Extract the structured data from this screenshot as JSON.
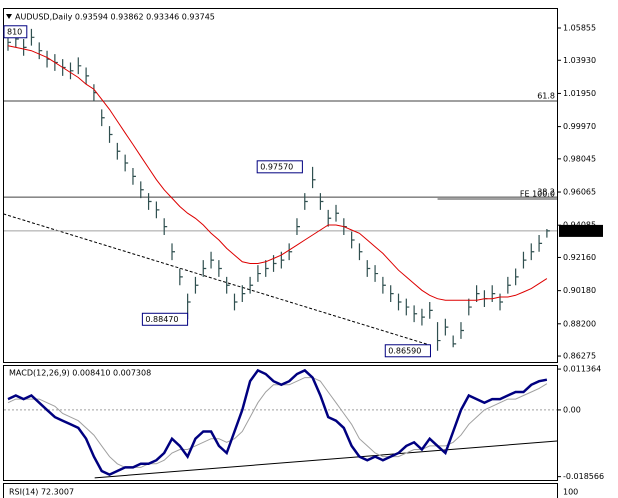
{
  "chart_data": [
    {
      "type": "ohlc",
      "title": "AUDUSD,Daily  0.93594 0.93862 0.93346 0.93745",
      "color": "#2f4f4f",
      "high": [
        1.055,
        1.057,
        1.052,
        1.058,
        1.05,
        1.045,
        1.043,
        1.04,
        1.038,
        1.041,
        1.035,
        1.025,
        1.01,
        1.0,
        0.99,
        0.983,
        0.975,
        0.967,
        0.96,
        0.955,
        0.945,
        0.93,
        0.915,
        0.9,
        0.91,
        0.92,
        0.925,
        0.92,
        0.91,
        0.9,
        0.905,
        0.91,
        0.917,
        0.92,
        0.923,
        0.925,
        0.93,
        0.945,
        0.96,
        0.9757,
        0.96,
        0.95,
        0.953,
        0.945,
        0.937,
        0.93,
        0.92,
        0.917,
        0.91,
        0.905,
        0.9,
        0.897,
        0.893,
        0.891,
        0.895,
        0.883,
        0.885,
        0.875,
        0.883,
        0.897,
        0.905,
        0.902,
        0.905,
        0.9,
        0.91,
        0.915,
        0.925,
        0.93,
        0.935,
        0.93862
      ],
      "low": [
        1.045,
        1.047,
        1.042,
        1.048,
        1.04,
        1.035,
        1.033,
        1.03,
        1.028,
        1.031,
        1.025,
        1.015,
        1.0,
        0.99,
        0.98,
        0.973,
        0.965,
        0.957,
        0.95,
        0.945,
        0.935,
        0.92,
        0.905,
        0.8847,
        0.9,
        0.91,
        0.915,
        0.91,
        0.9,
        0.89,
        0.895,
        0.9,
        0.907,
        0.91,
        0.913,
        0.915,
        0.92,
        0.935,
        0.95,
        0.963,
        0.95,
        0.94,
        0.943,
        0.935,
        0.927,
        0.92,
        0.91,
        0.907,
        0.9,
        0.895,
        0.89,
        0.887,
        0.883,
        0.881,
        0.885,
        0.8659,
        0.875,
        0.868,
        0.873,
        0.887,
        0.895,
        0.892,
        0.895,
        0.89,
        0.9,
        0.905,
        0.915,
        0.92,
        0.925,
        0.93346
      ],
      "close": [
        1.05,
        1.052,
        1.047,
        1.053,
        1.045,
        1.04,
        1.038,
        1.035,
        1.033,
        1.036,
        1.03,
        1.02,
        1.005,
        0.995,
        0.985,
        0.978,
        0.97,
        0.962,
        0.955,
        0.95,
        0.94,
        0.925,
        0.91,
        0.895,
        0.905,
        0.915,
        0.92,
        0.915,
        0.905,
        0.895,
        0.9,
        0.905,
        0.912,
        0.915,
        0.918,
        0.92,
        0.925,
        0.94,
        0.955,
        0.968,
        0.955,
        0.945,
        0.948,
        0.94,
        0.932,
        0.925,
        0.915,
        0.912,
        0.905,
        0.9,
        0.895,
        0.892,
        0.888,
        0.886,
        0.89,
        0.872,
        0.88,
        0.87,
        0.878,
        0.892,
        0.9,
        0.897,
        0.9,
        0.895,
        0.905,
        0.91,
        0.92,
        0.925,
        0.93,
        0.93745
      ],
      "series": [
        {
          "color": "#dd0000",
          "values": [
            1.048,
            1.047,
            1.046,
            1.045,
            1.043,
            1.041,
            1.038,
            1.035,
            1.032,
            1.029,
            1.025,
            1.022,
            1.016,
            1.01,
            1.003,
            0.996,
            0.989,
            0.982,
            0.975,
            0.968,
            0.962,
            0.957,
            0.952,
            0.948,
            0.945,
            0.941,
            0.936,
            0.932,
            0.927,
            0.923,
            0.919,
            0.918,
            0.918,
            0.919,
            0.921,
            0.923,
            0.926,
            0.929,
            0.932,
            0.935,
            0.938,
            0.941,
            0.941,
            0.94,
            0.938,
            0.936,
            0.932,
            0.928,
            0.924,
            0.919,
            0.914,
            0.91,
            0.906,
            0.902,
            0.899,
            0.897,
            0.896,
            0.896,
            0.896,
            0.896,
            0.896,
            0.897,
            0.897,
            0.898,
            0.898,
            0.899,
            0.901,
            0.903,
            0.906,
            0.909
          ]
        }
      ],
      "ylim": [
        0.8592,
        1.0693
      ],
      "yticks": [
        {
          "value": 1.05855,
          "label": "1.05855"
        },
        {
          "value": 1.0393,
          "label": "1.03930"
        },
        {
          "value": 1.0195,
          "label": "1.01950"
        },
        {
          "value": 0.9997,
          "label": "0.99970"
        },
        {
          "value": 0.98045,
          "label": "0.98045"
        },
        {
          "value": 0.96065,
          "label": "0.96065"
        },
        {
          "value": 0.94085,
          "label": "0.94085"
        },
        {
          "value": 0.9216,
          "label": "0.92160"
        },
        {
          "value": 0.9018,
          "label": "0.90180"
        },
        {
          "value": 0.882,
          "label": "0.88200"
        },
        {
          "value": 0.86275,
          "label": "0.86275"
        }
      ],
      "hlines": [
        {
          "value": 1.015,
          "label": "61.8",
          "from": -1
        },
        {
          "value": 0.9576,
          "label": "38.2",
          "from": -1
        },
        {
          "value": 0.9565,
          "label": "FE 100.0",
          "from": 55
        }
      ],
      "current_price": {
        "value": 0.93745,
        "label": "0.93745"
      },
      "trendline": {
        "x": [
          -0.6,
          54
        ],
        "y": [
          0.9476,
          0.8693
        ]
      },
      "annotations": [
        {
          "x": 34.8,
          "value": 0.9757,
          "label": "0.97570"
        },
        {
          "x": 20.1,
          "value": 0.8847,
          "label": "0.88470"
        },
        {
          "x": 51.2,
          "value": 0.8659,
          "label": "0.86590"
        },
        {
          "x": 0.5,
          "value": 1.0563,
          "label": "810"
        }
      ]
    },
    {
      "type": "line",
      "title": "MACD(12,26,9) 0.008410 0.007308",
      "series": [
        {
          "color": "#000080",
          "values": [
            0.003,
            0.004,
            0.003,
            0.004,
            0.002,
            0.0,
            -0.002,
            -0.003,
            -0.004,
            -0.005,
            -0.008,
            -0.013,
            -0.017,
            -0.018,
            -0.017,
            -0.016,
            -0.016,
            -0.015,
            -0.015,
            -0.014,
            -0.012,
            -0.008,
            -0.01,
            -0.013,
            -0.008,
            -0.006,
            -0.006,
            -0.01,
            -0.012,
            -0.006,
            0.0,
            0.008,
            0.011,
            0.01,
            0.008,
            0.007,
            0.008,
            0.01,
            0.011,
            0.009,
            0.004,
            -0.002,
            -0.003,
            -0.005,
            -0.01,
            -0.013,
            -0.014,
            -0.013,
            -0.014,
            -0.013,
            -0.012,
            -0.01,
            -0.009,
            -0.011,
            -0.008,
            -0.01,
            -0.012,
            -0.006,
            0.0,
            0.004,
            0.003,
            0.002,
            0.003,
            0.003,
            0.004,
            0.005,
            0.005,
            0.007,
            0.008,
            0.00841
          ]
        },
        {
          "color": "#a0a0a0",
          "values": [
            0.002,
            0.003,
            0.003,
            0.003,
            0.003,
            0.002,
            0.001,
            -0.001,
            -0.002,
            -0.003,
            -0.005,
            -0.007,
            -0.01,
            -0.013,
            -0.015,
            -0.016,
            -0.016,
            -0.016,
            -0.015,
            -0.015,
            -0.014,
            -0.012,
            -0.011,
            -0.011,
            -0.01,
            -0.009,
            -0.008,
            -0.008,
            -0.009,
            -0.008,
            -0.006,
            -0.002,
            0.002,
            0.005,
            0.007,
            0.007,
            0.007,
            0.008,
            0.009,
            0.009,
            0.008,
            0.005,
            0.002,
            -0.001,
            -0.004,
            -0.008,
            -0.01,
            -0.012,
            -0.013,
            -0.013,
            -0.013,
            -0.012,
            -0.011,
            -0.011,
            -0.01,
            -0.01,
            -0.01,
            -0.009,
            -0.007,
            -0.004,
            -0.002,
            0.0,
            0.001,
            0.002,
            0.003,
            0.003,
            0.004,
            0.005,
            0.006,
            0.007308
          ]
        }
      ],
      "ylim": [
        -0.0195,
        0.0125
      ],
      "yticks": [
        0.011364,
        {
          "value": 0,
          "label": "0.00"
        },
        -0.018566
      ],
      "trendline": {
        "x": [
          11.1,
          70.3
        ],
        "y": [
          -0.0189,
          -0.00865
        ]
      }
    },
    {
      "type": "line",
      "title": "RSI(14) 72.3007",
      "yticks": [
        100
      ]
    }
  ]
}
